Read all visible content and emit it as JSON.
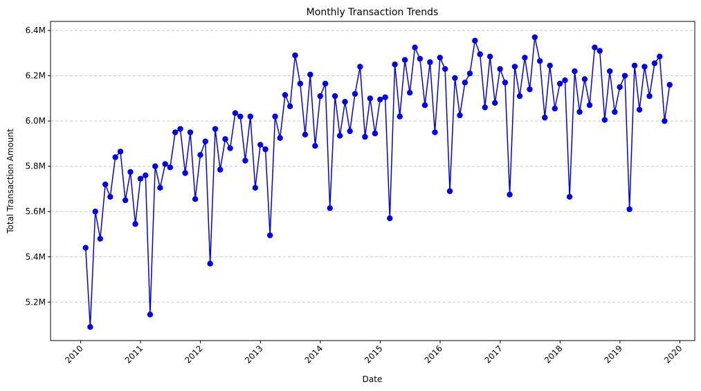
{
  "chart_data": {
    "type": "line",
    "title": "Monthly Transaction Trends",
    "xlabel": "Date",
    "ylabel": "Total Transaction Amount",
    "x_axis": "date",
    "xlim": [
      "2009-07-01",
      "2020-04-01"
    ],
    "ylim": [
      5030000,
      6440000
    ],
    "x_ticks": [
      "2010",
      "2011",
      "2012",
      "2013",
      "2014",
      "2015",
      "2016",
      "2017",
      "2018",
      "2019",
      "2020"
    ],
    "x_tick_dates": [
      "2010-01-01",
      "2011-01-01",
      "2012-01-01",
      "2013-01-01",
      "2014-01-01",
      "2015-01-01",
      "2016-01-01",
      "2017-01-01",
      "2018-01-01",
      "2019-01-01",
      "2020-01-01"
    ],
    "x_tick_rotation_deg": 45,
    "y_ticks": [
      5200000,
      5400000,
      5600000,
      5800000,
      6000000,
      6200000,
      6400000
    ],
    "y_tick_labels": [
      "5.2M",
      "5.4M",
      "5.6M",
      "5.8M",
      "6.0M",
      "6.2M",
      "6.4M"
    ],
    "grid": {
      "axis": "y",
      "style": "dashed"
    },
    "legend": "none",
    "colors": {
      "series": "#0000ee",
      "grid": "#c8c8c8",
      "axes": "#000000"
    },
    "series": [
      {
        "marker": "circle",
        "x": [
          "2010-01-31",
          "2010-02-28",
          "2010-03-31",
          "2010-04-30",
          "2010-05-31",
          "2010-06-30",
          "2010-07-31",
          "2010-08-31",
          "2010-09-30",
          "2010-10-31",
          "2010-11-30",
          "2010-12-31",
          "2011-01-31",
          "2011-02-28",
          "2011-03-31",
          "2011-04-30",
          "2011-05-31",
          "2011-06-30",
          "2011-07-31",
          "2011-08-31",
          "2011-09-30",
          "2011-10-31",
          "2011-11-30",
          "2011-12-31",
          "2012-01-31",
          "2012-02-29",
          "2012-03-31",
          "2012-04-30",
          "2012-05-31",
          "2012-06-30",
          "2012-07-31",
          "2012-08-31",
          "2012-09-30",
          "2012-10-31",
          "2012-11-30",
          "2012-12-31",
          "2013-01-31",
          "2013-02-28",
          "2013-03-31",
          "2013-04-30",
          "2013-05-31",
          "2013-06-30",
          "2013-07-31",
          "2013-08-31",
          "2013-09-30",
          "2013-10-31",
          "2013-11-30",
          "2013-12-31",
          "2014-01-31",
          "2014-02-28",
          "2014-03-31",
          "2014-04-30",
          "2014-05-31",
          "2014-06-30",
          "2014-07-31",
          "2014-08-31",
          "2014-09-30",
          "2014-10-31",
          "2014-11-30",
          "2014-12-31",
          "2015-01-31",
          "2015-02-28",
          "2015-03-31",
          "2015-04-30",
          "2015-05-31",
          "2015-06-30",
          "2015-07-31",
          "2015-08-31",
          "2015-09-30",
          "2015-10-31",
          "2015-11-30",
          "2015-12-31",
          "2016-01-31",
          "2016-02-29",
          "2016-03-31",
          "2016-04-30",
          "2016-05-31",
          "2016-06-30",
          "2016-07-31",
          "2016-08-31",
          "2016-09-30",
          "2016-10-31",
          "2016-11-30",
          "2016-12-31",
          "2017-01-31",
          "2017-02-28",
          "2017-03-31",
          "2017-04-30",
          "2017-05-31",
          "2017-06-30",
          "2017-07-31",
          "2017-08-31",
          "2017-09-30",
          "2017-10-31",
          "2017-11-30",
          "2017-12-31",
          "2018-01-31",
          "2018-02-28",
          "2018-03-31",
          "2018-04-30",
          "2018-05-31",
          "2018-06-30",
          "2018-07-31",
          "2018-08-31",
          "2018-09-30",
          "2018-10-31",
          "2018-11-30",
          "2018-12-31",
          "2019-01-31",
          "2019-02-28",
          "2019-03-31",
          "2019-04-30",
          "2019-05-31",
          "2019-06-30",
          "2019-07-31",
          "2019-08-31",
          "2019-09-30",
          "2019-10-31"
        ],
        "y": [
          5440000,
          5090000,
          5600000,
          5480000,
          5720000,
          5665000,
          5840000,
          5865000,
          5650000,
          5775000,
          5545000,
          5745000,
          5760000,
          5145000,
          5800000,
          5705000,
          5810000,
          5795000,
          5950000,
          5965000,
          5770000,
          5950000,
          5655000,
          5850000,
          5910000,
          5370000,
          5965000,
          5785000,
          5920000,
          5880000,
          6035000,
          6020000,
          5825000,
          6020000,
          5705000,
          5895000,
          5875000,
          5495000,
          6020000,
          5925000,
          6115000,
          6065000,
          6290000,
          6165000,
          5940000,
          6205000,
          5890000,
          6110000,
          6165000,
          5615000,
          6110000,
          5935000,
          6085000,
          5955000,
          6120000,
          6240000,
          5930000,
          6100000,
          5945000,
          6095000,
          6105000,
          5570000,
          6250000,
          6020000,
          6270000,
          6125000,
          6325000,
          6275000,
          6070000,
          6260000,
          5950000,
          6280000,
          6230000,
          5690000,
          6190000,
          6025000,
          6170000,
          6210000,
          6355000,
          6295000,
          6060000,
          6285000,
          6080000,
          6230000,
          6170000,
          5675000,
          6240000,
          6110000,
          6280000,
          6140000,
          6370000,
          6265000,
          6015000,
          6245000,
          6055000,
          6165000,
          6180000,
          5665000,
          6220000,
          6040000,
          6185000,
          6070000,
          6325000,
          6310000,
          6005000,
          6220000,
          6040000,
          6150000,
          6200000,
          5610000,
          6245000,
          6050000,
          6240000,
          6110000,
          6255000,
          6285000,
          6000000,
          6160000
        ]
      }
    ]
  }
}
